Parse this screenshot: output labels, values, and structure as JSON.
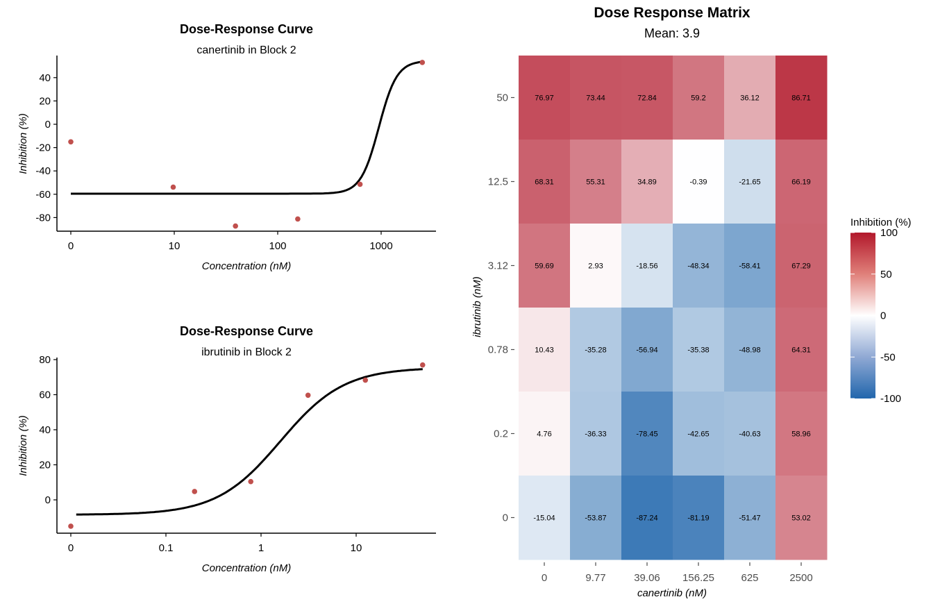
{
  "chart_data": [
    {
      "type": "scatter",
      "subtype": "dose-response-curve",
      "title": "Dose-Response Curve",
      "subtitle": "canertinib in Block 2",
      "xlabel": "Concentration (nM)",
      "ylabel": "Inhibition (%)",
      "xscale": "log10 (0 plotted at left edge)",
      "xticks": [
        "0",
        "10",
        "100",
        "1000"
      ],
      "yticks": [
        "40",
        "20",
        "0",
        "-20",
        "-40",
        "-60",
        "-80"
      ],
      "ylim": [
        -90,
        57
      ],
      "points": [
        {
          "x": 0,
          "y": -15.04
        },
        {
          "x": 9.77,
          "y": -53.87
        },
        {
          "x": 39.06,
          "y": -87.24
        },
        {
          "x": 156.25,
          "y": -81.19
        },
        {
          "x": 625,
          "y": -51.47
        },
        {
          "x": 2500,
          "y": 53.02
        }
      ],
      "fit": {
        "bottom": -59.5,
        "top": 54.5,
        "ec50": 950,
        "hill": 5
      }
    },
    {
      "type": "scatter",
      "subtype": "dose-response-curve",
      "title": "Dose-Response Curve",
      "subtitle": "ibrutinib in Block 2",
      "xlabel": "Concentration (nM)",
      "ylabel": "Inhibition (%)",
      "xscale": "log10 (0 plotted at left edge)",
      "xticks": [
        "0",
        "0.1",
        "1",
        "10"
      ],
      "yticks": [
        "80",
        "60",
        "40",
        "20",
        "0"
      ],
      "ylim": [
        -20,
        80
      ],
      "points": [
        {
          "x": 0,
          "y": -15.04
        },
        {
          "x": 0.2,
          "y": 4.76
        },
        {
          "x": 0.78,
          "y": 10.43
        },
        {
          "x": 3.12,
          "y": 59.69
        },
        {
          "x": 12.5,
          "y": 68.31
        },
        {
          "x": 50,
          "y": 76.97
        }
      ],
      "fit": {
        "bottom": -8.5,
        "top": 75.5,
        "ec50": 1.6,
        "hill": 1.3
      }
    },
    {
      "type": "heatmap",
      "title": "Dose Response Matrix",
      "subtitle": "Mean: 3.9",
      "xlabel": "canertinib (nM)",
      "ylabel": "ibrutinib (nM)",
      "x": [
        "0",
        "9.77",
        "39.06",
        "156.25",
        "625",
        "2500"
      ],
      "y_top_to_bottom": [
        "50",
        "12.5",
        "3.12",
        "0.78",
        "0.2",
        "0"
      ],
      "values": [
        [
          76.97,
          73.44,
          72.84,
          59.2,
          36.12,
          86.71
        ],
        [
          68.31,
          55.31,
          34.89,
          -0.39,
          -21.65,
          66.19
        ],
        [
          59.69,
          2.93,
          -18.56,
          -48.34,
          -58.41,
          67.29
        ],
        [
          10.43,
          -35.28,
          -56.94,
          -35.38,
          -48.98,
          64.31
        ],
        [
          4.76,
          -36.33,
          -78.45,
          -42.65,
          -40.63,
          58.96
        ],
        [
          -15.04,
          -53.87,
          -87.24,
          -81.19,
          -51.47,
          53.02
        ]
      ],
      "labels": [
        [
          "76.97",
          "73.44",
          "72.84",
          "59.2",
          "36.12",
          "86.71"
        ],
        [
          "68.31",
          "55.31",
          "34.89",
          "-0.39",
          "-21.65",
          "66.19"
        ],
        [
          "59.69",
          "2.93",
          "-18.56",
          "-48.34",
          "-58.41",
          "67.29"
        ],
        [
          "10.43",
          "-35.28",
          "-56.94",
          "-35.38",
          "-48.98",
          "64.31"
        ],
        [
          "4.76",
          "-36.33",
          "-78.45",
          "-42.65",
          "-40.63",
          "58.96"
        ],
        [
          "-15.04",
          "-53.87",
          "-87.24",
          "-81.19",
          "-51.47",
          "53.02"
        ]
      ],
      "legend": {
        "title": "Inhibition (%)",
        "ticks": [
          "100",
          "50",
          "0",
          "-50",
          "-100"
        ],
        "range": [
          -100,
          100
        ],
        "high_color": "#b2182b",
        "mid_color": "#ffffff",
        "low_color": "#2166ac",
        "position": "right"
      }
    }
  ],
  "colors": {
    "point": "#c0504d",
    "curve": "#000000",
    "axis": "#000000"
  }
}
